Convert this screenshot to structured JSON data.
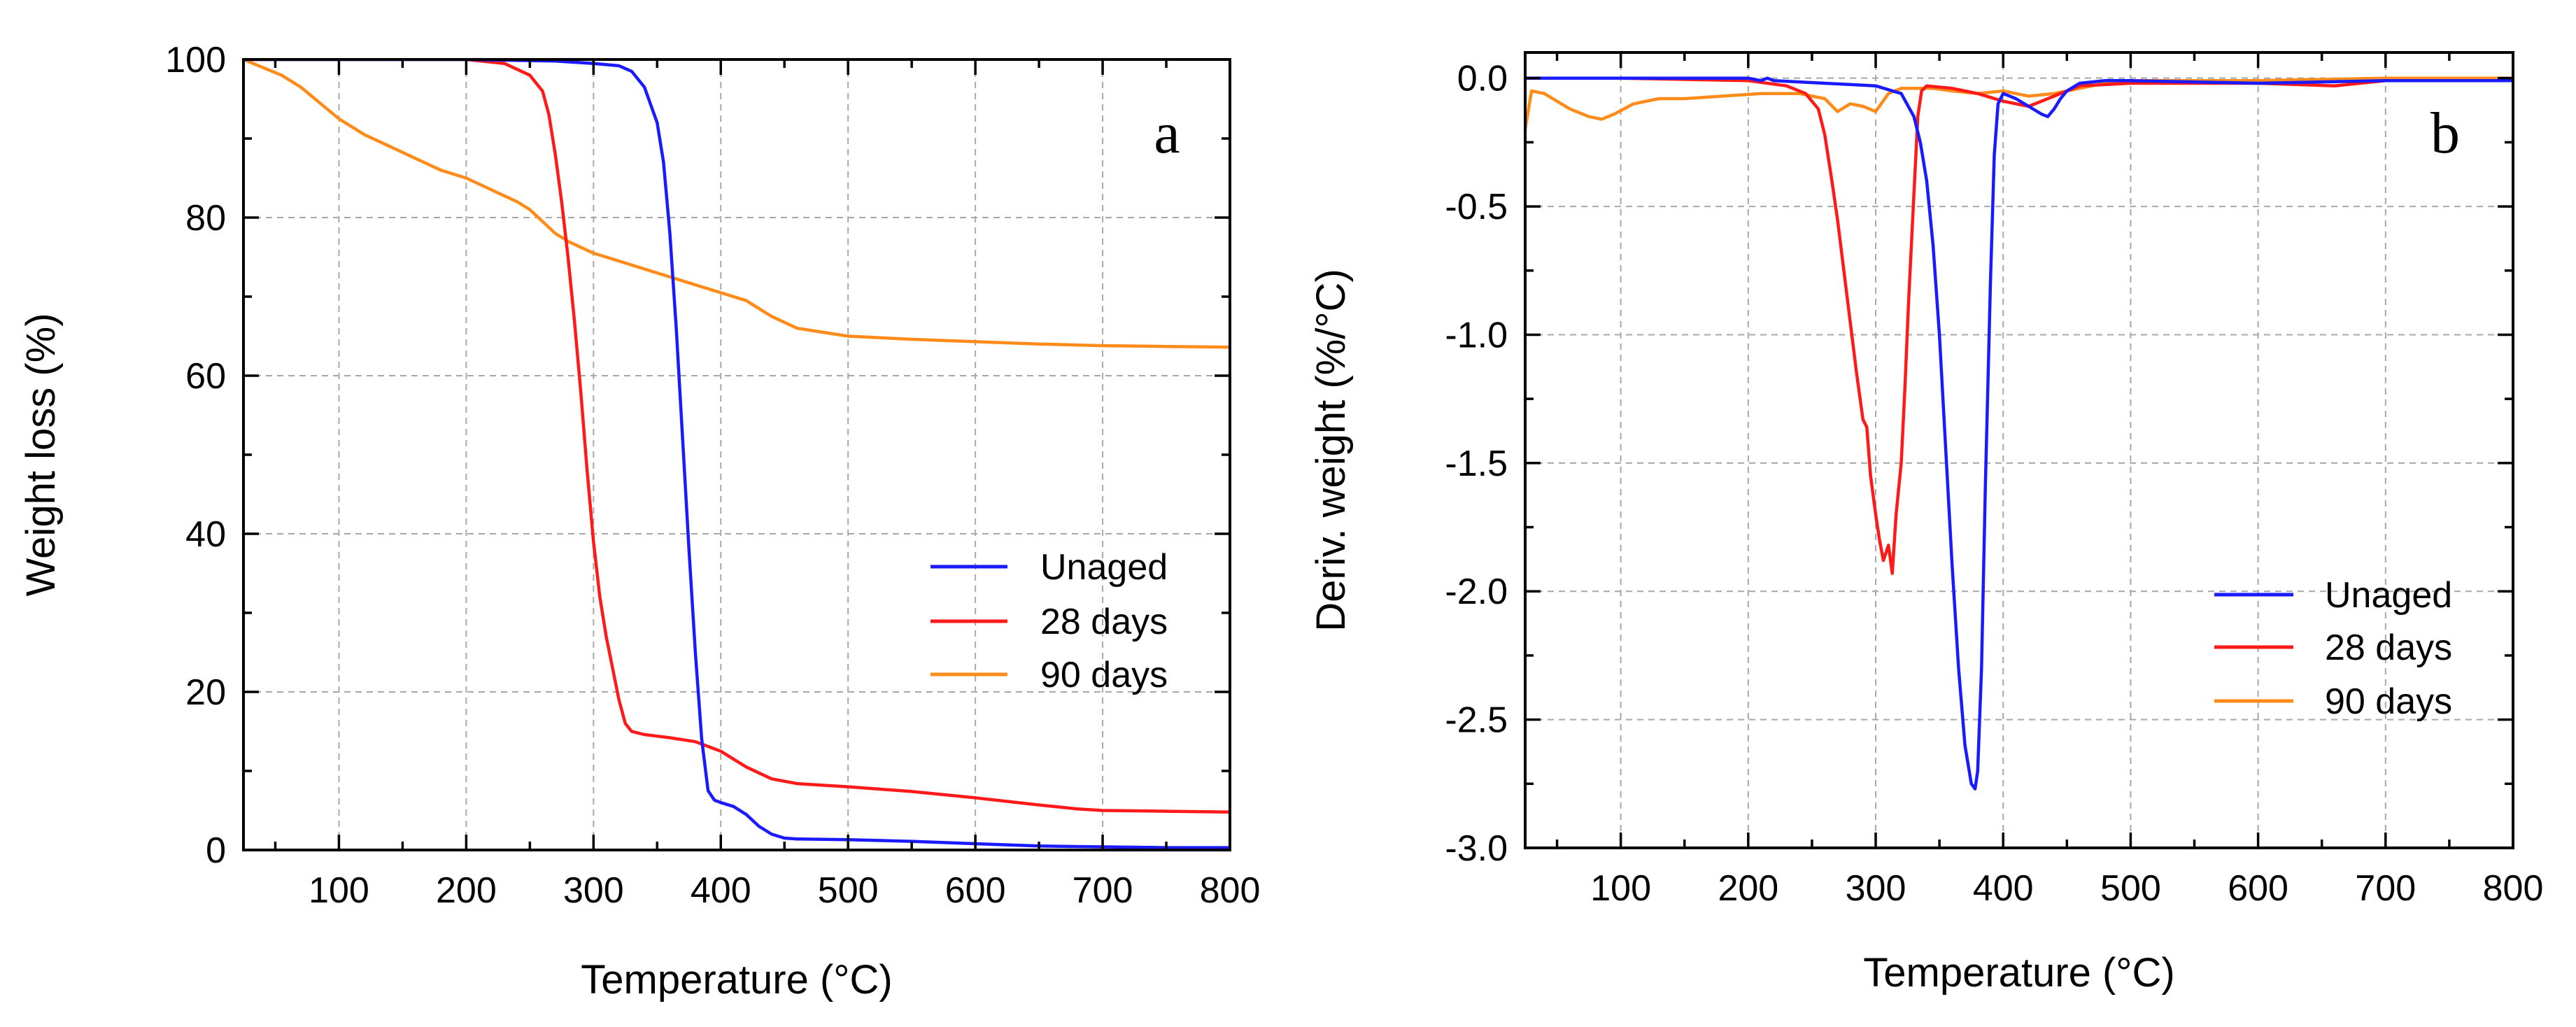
{
  "chart_data": [
    {
      "type": "line",
      "panel": "a",
      "xlabel": "Temperature (°C)",
      "ylabel": "Weight loss (%)",
      "xlim": [
        25,
        800
      ],
      "ylim": [
        0,
        100
      ],
      "xticks": [
        100,
        200,
        300,
        400,
        500,
        600,
        700,
        800
      ],
      "yticks": [
        0,
        20,
        40,
        60,
        80,
        100
      ],
      "legend_position": "right",
      "grid": true,
      "series": [
        {
          "name": "Unaged",
          "color": "#1a1aff",
          "x": [
            25,
            100,
            200,
            270,
            300,
            320,
            330,
            340,
            350,
            355,
            360,
            365,
            370,
            375,
            380,
            385,
            390,
            395,
            400,
            410,
            420,
            430,
            440,
            450,
            460,
            500,
            550,
            600,
            650,
            700,
            750,
            800
          ],
          "y": [
            100,
            100,
            100,
            99.8,
            99.5,
            99.2,
            98.5,
            96.5,
            92,
            87,
            78,
            66,
            52,
            38,
            25,
            14,
            7.5,
            6.3,
            6,
            5.5,
            4.5,
            3,
            2,
            1.5,
            1.4,
            1.3,
            1.1,
            0.8,
            0.5,
            0.4,
            0.3,
            0.3
          ]
        },
        {
          "name": "28 days",
          "color": "#ff1a1a",
          "x": [
            25,
            100,
            200,
            230,
            250,
            260,
            265,
            270,
            275,
            280,
            285,
            290,
            295,
            300,
            305,
            310,
            315,
            320,
            325,
            330,
            335,
            340,
            360,
            380,
            400,
            420,
            440,
            460,
            500,
            550,
            600,
            650,
            680,
            700,
            750,
            800
          ],
          "y": [
            100,
            100,
            100,
            99.5,
            98,
            96,
            93,
            88,
            82,
            75,
            67,
            58,
            48,
            39,
            32,
            27,
            23,
            19,
            16,
            15,
            14.8,
            14.6,
            14.2,
            13.7,
            12.5,
            10.5,
            9,
            8.4,
            8,
            7.4,
            6.6,
            5.7,
            5.2,
            5,
            4.9,
            4.8
          ]
        },
        {
          "name": "90 days",
          "color": "#ff8c1a",
          "x": [
            25,
            40,
            55,
            70,
            85,
            100,
            120,
            140,
            160,
            180,
            200,
            220,
            240,
            250,
            260,
            270,
            280,
            300,
            320,
            340,
            360,
            380,
            400,
            420,
            440,
            460,
            480,
            500,
            550,
            600,
            650,
            700,
            750,
            800
          ],
          "y": [
            100,
            99,
            98,
            96.5,
            94.5,
            92.5,
            90.5,
            89,
            87.5,
            86,
            85,
            83.5,
            82,
            81,
            79.5,
            78,
            77,
            75.5,
            74.5,
            73.5,
            72.5,
            71.5,
            70.5,
            69.5,
            67.5,
            66,
            65.5,
            65,
            64.6,
            64.3,
            64,
            63.8,
            63.7,
            63.6
          ]
        }
      ]
    },
    {
      "type": "line",
      "panel": "b",
      "xlabel": "Temperature (°C)",
      "ylabel": "Deriv. weight (%/°C)",
      "xlim": [
        25,
        800
      ],
      "ylim": [
        -3.0,
        0.1
      ],
      "xticks": [
        100,
        200,
        300,
        400,
        500,
        600,
        700,
        800
      ],
      "yticks": [
        0.0,
        -0.5,
        -1.0,
        -1.5,
        -2.0,
        -2.5,
        -3.0
      ],
      "ytick_labels": [
        "0.0",
        "-0.5",
        "-1.0",
        "-1.5",
        "-2.0",
        "-2.5",
        "-3.0"
      ],
      "legend_position": "lower-right",
      "grid": true,
      "series": [
        {
          "name": "Unaged",
          "color": "#1a1aff",
          "x": [
            25,
            100,
            200,
            210,
            215,
            220,
            260,
            300,
            320,
            330,
            335,
            340,
            345,
            350,
            355,
            360,
            365,
            370,
            375,
            378,
            380,
            383,
            386,
            390,
            393,
            396,
            400,
            410,
            420,
            430,
            435,
            440,
            445,
            450,
            460,
            480,
            500,
            600,
            700,
            800
          ],
          "y": [
            0.0,
            0.0,
            0.0,
            -0.01,
            0.0,
            -0.01,
            -0.02,
            -0.03,
            -0.06,
            -0.15,
            -0.25,
            -0.4,
            -0.65,
            -1.0,
            -1.45,
            -1.9,
            -2.3,
            -2.6,
            -2.75,
            -2.77,
            -2.7,
            -2.3,
            -1.6,
            -0.8,
            -0.3,
            -0.1,
            -0.06,
            -0.08,
            -0.11,
            -0.14,
            -0.15,
            -0.12,
            -0.08,
            -0.05,
            -0.02,
            -0.01,
            -0.01,
            -0.02,
            -0.01,
            -0.01
          ]
        },
        {
          "name": "28 days",
          "color": "#ff1a1a",
          "x": [
            25,
            100,
            200,
            230,
            245,
            255,
            260,
            265,
            270,
            275,
            280,
            285,
            290,
            293,
            296,
            300,
            303,
            306,
            310,
            313,
            316,
            320,
            323,
            326,
            330,
            333,
            336,
            340,
            360,
            380,
            400,
            420,
            440,
            460,
            500,
            600,
            660,
            700,
            800
          ],
          "y": [
            0.0,
            0.0,
            -0.01,
            -0.03,
            -0.06,
            -0.12,
            -0.22,
            -0.38,
            -0.55,
            -0.75,
            -0.95,
            -1.15,
            -1.33,
            -1.36,
            -1.55,
            -1.7,
            -1.8,
            -1.88,
            -1.82,
            -1.93,
            -1.7,
            -1.5,
            -1.2,
            -0.85,
            -0.45,
            -0.15,
            -0.05,
            -0.03,
            -0.04,
            -0.06,
            -0.09,
            -0.11,
            -0.07,
            -0.03,
            -0.02,
            -0.02,
            -0.03,
            -0.01,
            -0.01
          ]
        },
        {
          "name": "90 days",
          "color": "#ff8c1a",
          "x": [
            25,
            30,
            40,
            60,
            75,
            85,
            95,
            110,
            130,
            150,
            180,
            210,
            240,
            260,
            270,
            280,
            290,
            300,
            310,
            320,
            330,
            345,
            360,
            380,
            400,
            420,
            440,
            460,
            480,
            500,
            550,
            600,
            700,
            800
          ],
          "y": [
            -0.2,
            -0.05,
            -0.06,
            -0.12,
            -0.15,
            -0.16,
            -0.14,
            -0.1,
            -0.08,
            -0.08,
            -0.07,
            -0.06,
            -0.06,
            -0.08,
            -0.13,
            -0.1,
            -0.11,
            -0.13,
            -0.06,
            -0.04,
            -0.04,
            -0.04,
            -0.05,
            -0.06,
            -0.05,
            -0.07,
            -0.06,
            -0.04,
            -0.02,
            -0.01,
            -0.01,
            -0.01,
            0.0,
            0.0
          ]
        }
      ]
    }
  ]
}
